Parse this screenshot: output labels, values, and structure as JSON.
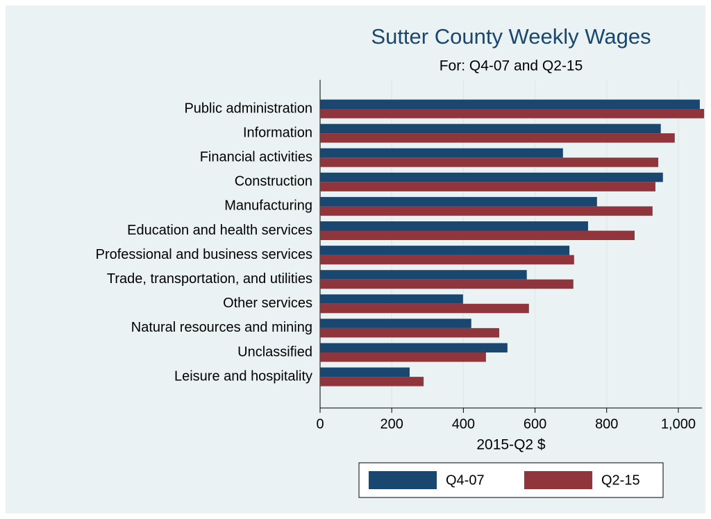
{
  "chart_data": {
    "type": "hbar",
    "title": "Sutter County Weekly Wages",
    "subtitle": "For: Q4-07 and Q2-15",
    "x_label": "2015-Q2 $",
    "categories": [
      "Public administration",
      "Information",
      "Financial activities",
      "Construction",
      "Manufacturing",
      "Education and health services",
      "Professional and business services",
      "Trade, transportation, and utilities",
      "Other services",
      "Natural resources and mining",
      "Unclassified",
      "Leisure and hospitality"
    ],
    "series": [
      {
        "name": "Q4-07",
        "color": "#1a476f",
        "values": [
          1060,
          951,
          678,
          957,
          773,
          748,
          696,
          577,
          399,
          422,
          523,
          250
        ]
      },
      {
        "name": "Q2-15",
        "color": "#90353b",
        "values": [
          1072,
          990,
          944,
          936,
          928,
          878,
          709,
          707,
          583,
          500,
          463,
          289
        ]
      }
    ],
    "xlim": [
      0,
      1066
    ],
    "xticks": [
      0,
      200,
      400,
      600,
      800,
      {
        "value": 1000,
        "label": "1,000"
      }
    ],
    "grid": true
  }
}
